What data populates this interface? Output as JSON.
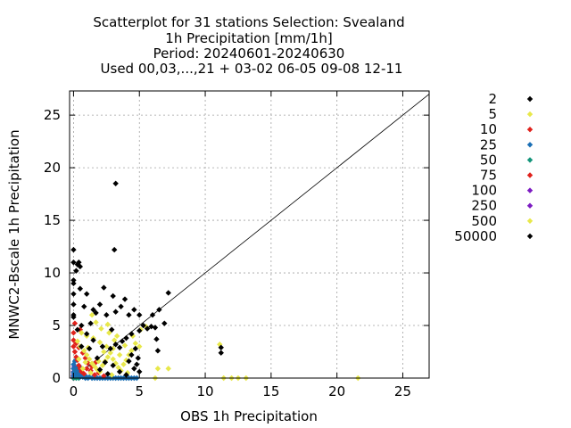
{
  "chart_data": {
    "type": "scatter",
    "title_lines": [
      "Scatterplot for   31 stations Selection: Svealand",
      "1h Precipitation [mm/1h]",
      "Period: 20240601-20240630",
      "Used 00,03,...,21 + 03-02 06-05 09-08 12-11"
    ],
    "xlabel": "OBS 1h Precipitation",
    "ylabel": "MNWC2-Bscale 1h Precipitation",
    "xlim": [
      -0.3,
      27
    ],
    "ylim": [
      0,
      27.3
    ],
    "xticks": [
      0,
      5,
      10,
      15,
      20,
      25
    ],
    "yticks": [
      0,
      5,
      10,
      15,
      20,
      25
    ],
    "grid": true,
    "diagonal_line": true,
    "legend_position": "right",
    "series": [
      {
        "name": "2",
        "color": "#000000",
        "points": [
          [
            0,
            12.2
          ],
          [
            0,
            11
          ],
          [
            0,
            9.3
          ],
          [
            0,
            9
          ],
          [
            0,
            8
          ],
          [
            0,
            7
          ],
          [
            0,
            6
          ],
          [
            0,
            5.8
          ],
          [
            0.3,
            10.8
          ],
          [
            0.4,
            11
          ],
          [
            0.5,
            10.6
          ],
          [
            0.2,
            10.2
          ],
          [
            0.5,
            8.5
          ],
          [
            1,
            8
          ],
          [
            2.3,
            8.6
          ],
          [
            3.2,
            18.5
          ],
          [
            3.1,
            12.2
          ],
          [
            3,
            7.8
          ],
          [
            2,
            7
          ],
          [
            1.5,
            6.5
          ],
          [
            1.7,
            6.2
          ],
          [
            2.5,
            6
          ],
          [
            3.2,
            6.3
          ],
          [
            3.6,
            6.8
          ],
          [
            3.9,
            7.5
          ],
          [
            4.2,
            6
          ],
          [
            4.6,
            6.5
          ],
          [
            5,
            6
          ],
          [
            5.3,
            5
          ],
          [
            6,
            6
          ],
          [
            6.5,
            6.5
          ],
          [
            7.2,
            8.1
          ],
          [
            6.9,
            5.2
          ],
          [
            6.2,
            4.8
          ],
          [
            5.9,
            4.9
          ],
          [
            5,
            4.5
          ],
          [
            4.4,
            4.2
          ],
          [
            4,
            3.8
          ],
          [
            3.7,
            3.5
          ],
          [
            3.5,
            2.9
          ],
          [
            4.7,
            2.8
          ],
          [
            4.4,
            2.2
          ],
          [
            4.9,
            1.9
          ],
          [
            4.8,
            1.3
          ],
          [
            4.6,
            0.9
          ],
          [
            5,
            0.6
          ],
          [
            4.2,
            1.6
          ],
          [
            3.2,
            3.2
          ],
          [
            2.8,
            2.8
          ],
          [
            2.2,
            3
          ],
          [
            1.5,
            3.6
          ],
          [
            1,
            4.2
          ],
          [
            0.6,
            5
          ],
          [
            0.3,
            4.6
          ],
          [
            0.6,
            3
          ],
          [
            1.2,
            2.8
          ],
          [
            1.8,
            1.9
          ],
          [
            2.4,
            1.5
          ],
          [
            3,
            1.2
          ],
          [
            3.5,
            0.6
          ],
          [
            4,
            0.3
          ],
          [
            2.6,
            0.4
          ],
          [
            2,
            0.8
          ],
          [
            6.4,
            2.6
          ],
          [
            6.3,
            3.7
          ],
          [
            11.2,
            2.9
          ],
          [
            11.2,
            2.4
          ],
          [
            5.6,
            4.7
          ],
          [
            0.8,
            6.8
          ],
          [
            1.3,
            5.2
          ],
          [
            2.9,
            4.6
          ]
        ]
      },
      {
        "name": "5",
        "color": "#e8e84a",
        "points": [
          [
            0.5,
            3
          ],
          [
            0.8,
            2.6
          ],
          [
            1,
            2.2
          ],
          [
            1.2,
            1.8
          ],
          [
            1.4,
            1.4
          ],
          [
            1.6,
            1.1
          ],
          [
            1.8,
            0.8
          ],
          [
            2,
            0.6
          ],
          [
            2.2,
            1.2
          ],
          [
            2.4,
            1.6
          ],
          [
            2.6,
            2
          ],
          [
            2.8,
            2.4
          ],
          [
            3,
            1.8
          ],
          [
            3.2,
            1.4
          ],
          [
            3.4,
            1
          ],
          [
            3.6,
            0.7
          ],
          [
            3.8,
            1.3
          ],
          [
            4,
            1.7
          ],
          [
            4.2,
            2.2
          ],
          [
            4.4,
            2.6
          ],
          [
            2.5,
            3
          ],
          [
            2,
            3.4
          ],
          [
            1.5,
            3.8
          ],
          [
            1,
            4
          ],
          [
            0.6,
            4.3
          ],
          [
            0.3,
            3.5
          ],
          [
            3,
            2.8
          ],
          [
            3.5,
            2.2
          ],
          [
            4.1,
            0.5
          ],
          [
            2.9,
            0.3
          ],
          [
            1.9,
            1.6
          ],
          [
            1.1,
            2.9
          ],
          [
            2.7,
            4.3
          ],
          [
            3.3,
            4
          ],
          [
            6.4,
            0.9
          ],
          [
            7.2,
            0.9
          ],
          [
            5.5,
            4.9
          ],
          [
            5.1,
            4.6
          ],
          [
            4.5,
            4
          ],
          [
            2.1,
            4.7
          ],
          [
            1.7,
            5.3
          ],
          [
            11.1,
            3.2
          ],
          [
            11.4,
            0
          ],
          [
            12,
            0
          ],
          [
            12.5,
            0
          ],
          [
            13.1,
            0
          ],
          [
            21.6,
            0
          ],
          [
            6.2,
            0
          ],
          [
            0.9,
            1.5
          ],
          [
            0.4,
            1.8
          ],
          [
            3.9,
            3.1
          ],
          [
            4.7,
            3.3
          ],
          [
            2.3,
            2.5
          ],
          [
            1.3,
            0.5
          ],
          [
            0.7,
            0.9
          ],
          [
            3.1,
            3.6
          ],
          [
            5,
            3
          ],
          [
            2.6,
            5.1
          ],
          [
            1.4,
            6
          ]
        ]
      },
      {
        "name": "10",
        "color": "#e0221c",
        "points": [
          [
            0,
            4.3
          ],
          [
            0,
            3.6
          ],
          [
            0,
            3
          ],
          [
            0.1,
            2.5
          ],
          [
            0.2,
            2
          ],
          [
            0.3,
            1.7
          ],
          [
            0.4,
            1.2
          ],
          [
            0.5,
            0.9
          ],
          [
            0.6,
            0.6
          ],
          [
            0.8,
            0.4
          ],
          [
            1,
            0.9
          ],
          [
            1.1,
            1.4
          ],
          [
            0.9,
            1.9
          ],
          [
            0.7,
            2.4
          ],
          [
            0.4,
            2.9
          ],
          [
            0.2,
            3.3
          ],
          [
            1.3,
            0.7
          ],
          [
            1.6,
            0.3
          ],
          [
            1.9,
            0.5
          ],
          [
            2.3,
            0.2
          ],
          [
            1.4,
            1.1
          ],
          [
            1.7,
            1.5
          ],
          [
            0.5,
            4.6
          ],
          [
            0.1,
            5.2
          ]
        ]
      },
      {
        "name": "25",
        "color": "#1b6fb5",
        "points": [
          [
            0,
            0.2
          ],
          [
            0,
            0.5
          ],
          [
            0,
            0.9
          ],
          [
            0,
            1.3
          ],
          [
            0.1,
            1.6
          ],
          [
            0.2,
            0.3
          ],
          [
            0.3,
            0.7
          ],
          [
            0.4,
            0.4
          ],
          [
            0.5,
            0.1
          ],
          [
            0.6,
            0.3
          ],
          [
            0.7,
            0.1
          ],
          [
            0.8,
            0.2
          ],
          [
            0.9,
            0
          ],
          [
            1,
            0.1
          ],
          [
            1.1,
            0
          ],
          [
            1.2,
            0.1
          ],
          [
            1.4,
            0
          ],
          [
            1.6,
            0
          ],
          [
            1.8,
            0
          ],
          [
            2,
            0
          ],
          [
            2.2,
            0
          ],
          [
            2.4,
            0
          ],
          [
            2.6,
            0
          ],
          [
            2.8,
            0
          ],
          [
            3,
            0
          ],
          [
            3.2,
            0
          ],
          [
            3.4,
            0
          ],
          [
            3.6,
            0
          ],
          [
            3.8,
            0
          ],
          [
            4,
            0
          ],
          [
            4.2,
            0
          ],
          [
            4.4,
            0
          ],
          [
            4.6,
            0
          ],
          [
            4.8,
            0
          ],
          [
            0.3,
            1.1
          ],
          [
            0.6,
            0.9
          ]
        ]
      },
      {
        "name": "50",
        "color": "#14957a",
        "points": [
          [
            0,
            0
          ],
          [
            0.1,
            0.1
          ],
          [
            0.2,
            0
          ],
          [
            0.3,
            0.2
          ],
          [
            0.4,
            0
          ],
          [
            0.15,
            0.4
          ],
          [
            0.05,
            0.6
          ],
          [
            0.25,
            0.8
          ]
        ]
      },
      {
        "name": "75",
        "color": "#e0221c",
        "points": [
          [
            0,
            0
          ],
          [
            0.05,
            0.05
          ],
          [
            0.1,
            0.15
          ],
          [
            0.08,
            0.25
          ]
        ]
      },
      {
        "name": "100",
        "color": "#7d1cc2",
        "points": [
          [
            0,
            0
          ],
          [
            0,
            0.3
          ],
          [
            0,
            0.6
          ],
          [
            0,
            0.9
          ],
          [
            0.05,
            1.1
          ]
        ]
      },
      {
        "name": "250",
        "color": "#7d1cc2",
        "points": [
          [
            0,
            0
          ],
          [
            0,
            0.1
          ]
        ]
      },
      {
        "name": "500",
        "color": "#e8e84a",
        "points": [
          [
            0,
            0
          ]
        ]
      },
      {
        "name": "50000",
        "color": "#000000",
        "points": []
      }
    ]
  }
}
